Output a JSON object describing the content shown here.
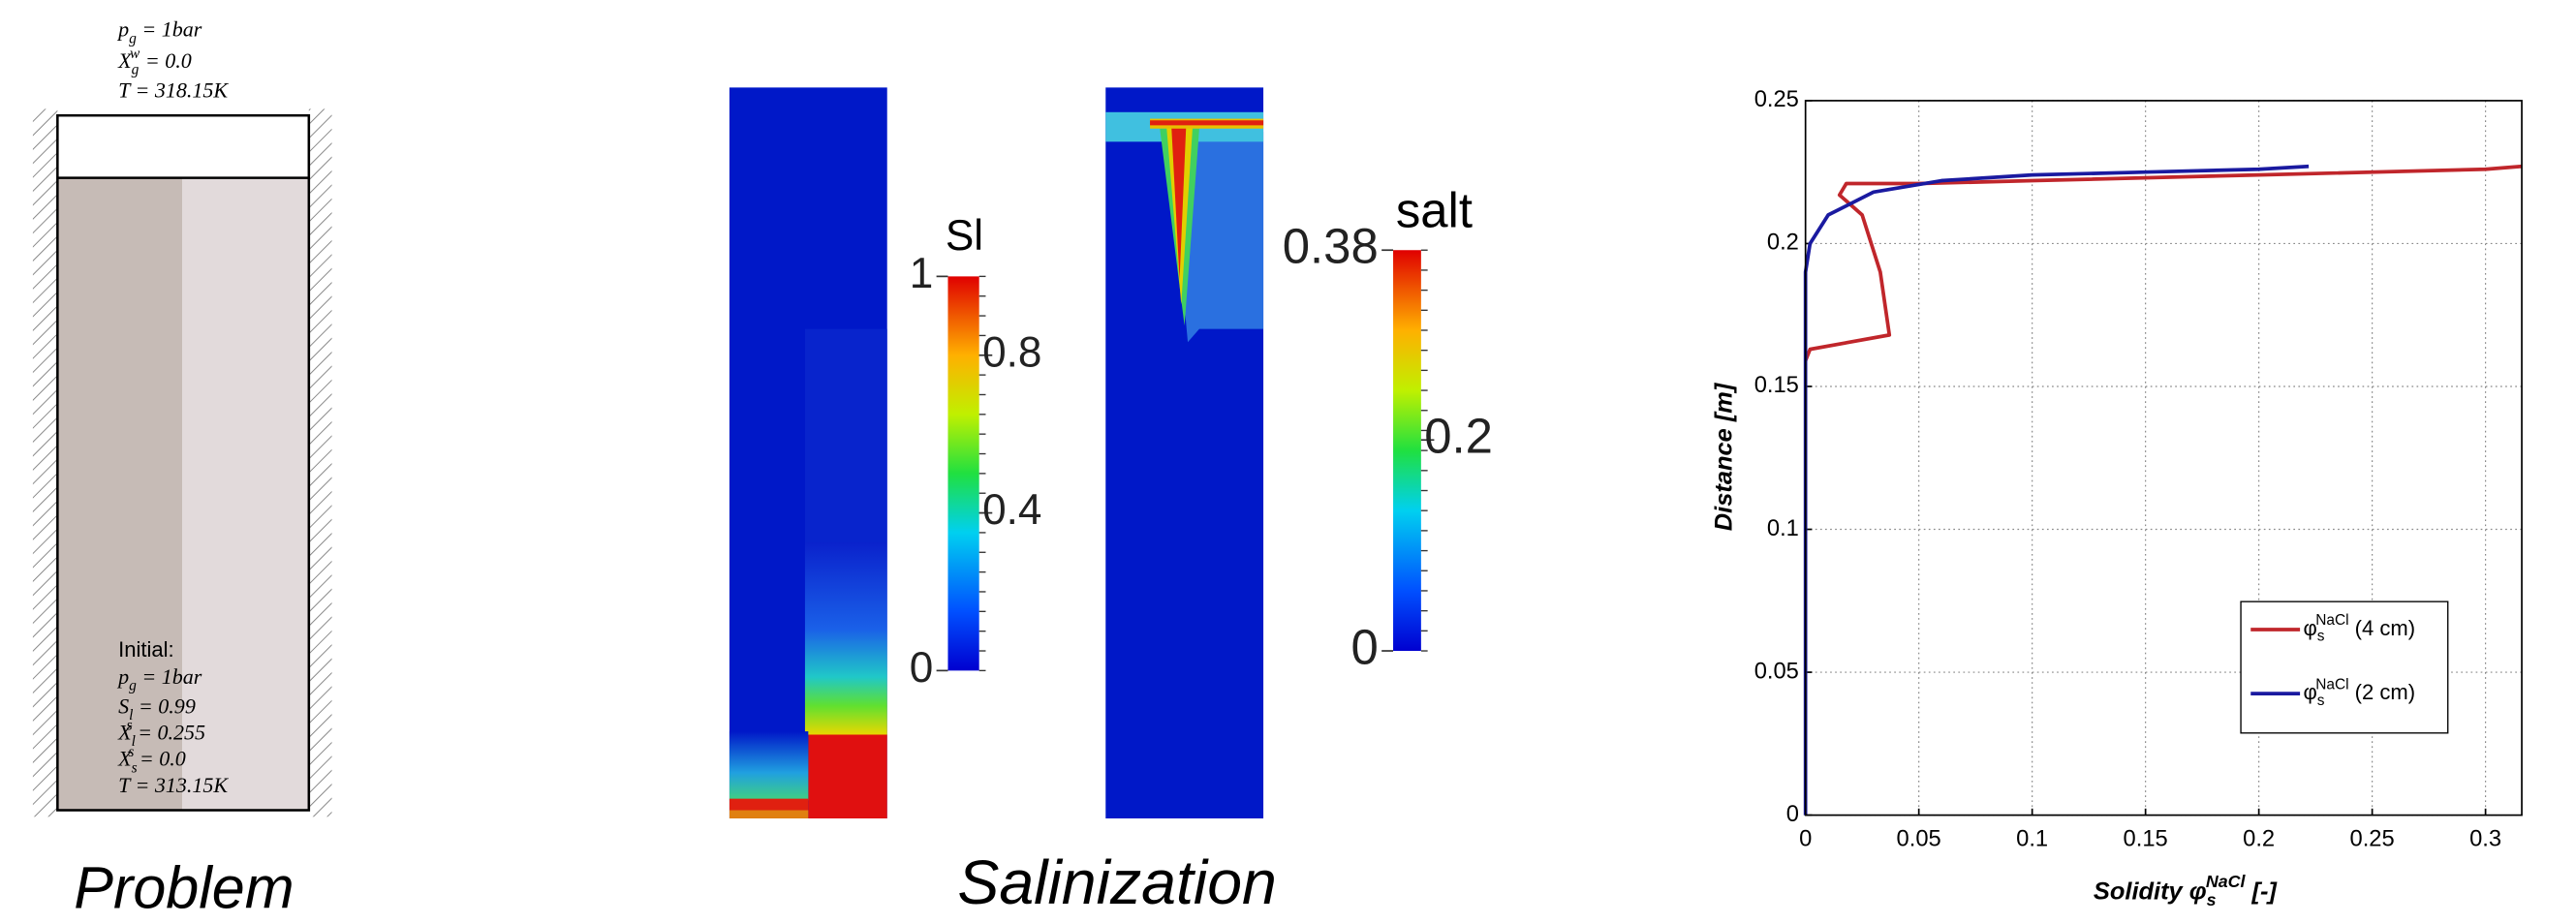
{
  "problem": {
    "top_conditions": [
      "p_g = 1bar",
      "X_g^w = 0.0",
      "T = 318.15K"
    ],
    "initial_heading": "Initial:",
    "initial_conditions": [
      "p_g = 1bar",
      "S_l = 0.99",
      "X_l^s = 0.255",
      "X_s^s = 0.0",
      "T = 313.15K"
    ],
    "caption": "Problem"
  },
  "salinization": {
    "caption": "Salinization",
    "colorbars": [
      {
        "title": "Sl",
        "range": [
          0,
          1
        ],
        "ticks": [
          0,
          0.4,
          0.8,
          1
        ]
      },
      {
        "title": "salt",
        "range": [
          0,
          0.38
        ],
        "ticks": [
          0,
          0.2,
          0.38
        ]
      }
    ]
  },
  "chart_data": {
    "type": "line",
    "x_label": "Solidity φ_s^NaCl [-]",
    "y_label": "Distance [m]",
    "series": [
      {
        "name": "φ_s^NaCl (4 cm)",
        "color": "#c0262b",
        "x": [
          0,
          0.002,
          0.037,
          0.033,
          0.025,
          0.015,
          0.018,
          0.05,
          0.1,
          0.2,
          0.3,
          0.316
        ],
        "values": [
          0.159,
          0.163,
          0.168,
          0.19,
          0.21,
          0.217,
          0.221,
          0.221,
          0.222,
          0.224,
          0.226,
          0.227
        ]
      },
      {
        "name": "φ_s^NaCl (2 cm)",
        "color": "#1a1aa0",
        "x": [
          0,
          0,
          0.002,
          0.01,
          0.03,
          0.06,
          0.1,
          0.15,
          0.2,
          0.222
        ],
        "values": [
          0,
          0.19,
          0.2,
          0.21,
          0.218,
          0.222,
          0.224,
          0.225,
          0.226,
          0.227
        ]
      }
    ],
    "xlim": [
      0,
      0.316
    ],
    "xticks": [
      0,
      0.05,
      0.1,
      0.15,
      0.2,
      0.25,
      0.3
    ],
    "ylim": [
      0,
      0.25
    ],
    "yticks": [
      0,
      0.05,
      0.1,
      0.15,
      0.2,
      0.25
    ],
    "grid": true,
    "legend": "lower right"
  }
}
